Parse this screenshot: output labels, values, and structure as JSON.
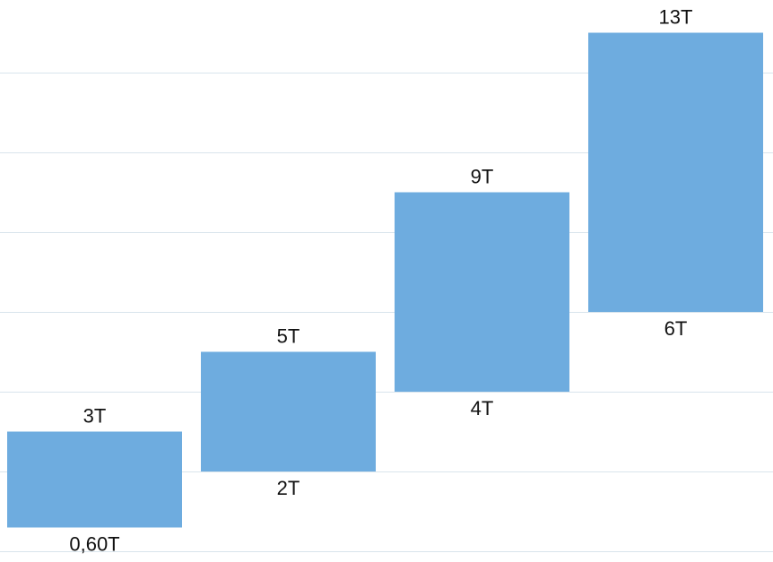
{
  "chart_data": {
    "type": "bar",
    "subtype": "floating-range",
    "series": [
      {
        "values": [
          {
            "low": 0.6,
            "high": 3,
            "low_label": "0,60T",
            "high_label": "3T"
          },
          {
            "low": 2,
            "high": 5,
            "low_label": "2T",
            "high_label": "5T"
          },
          {
            "low": 4,
            "high": 9,
            "low_label": "4T",
            "high_label": "9T"
          },
          {
            "low": 6,
            "high": 13,
            "low_label": "6T",
            "high_label": "13T"
          }
        ]
      }
    ],
    "ylim": [
      0,
      14
    ],
    "grid": true,
    "colors": {
      "bar": "#6eacdf",
      "grid": "#d9e4ec",
      "label": "#111111"
    }
  }
}
